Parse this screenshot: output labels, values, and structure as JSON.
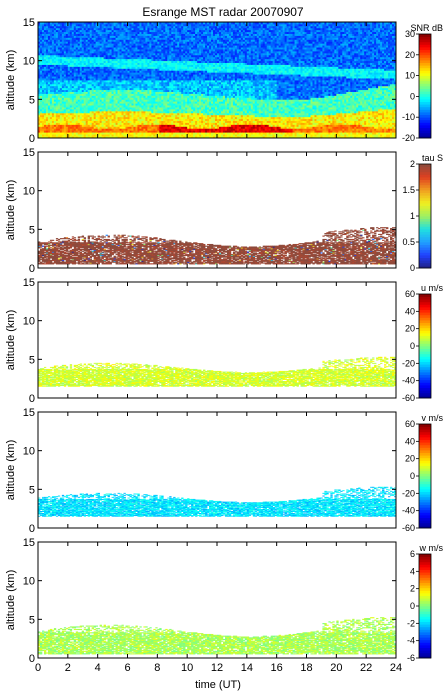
{
  "title": "Esrange MST radar 20070907",
  "x_axis": {
    "label": "time (UT)",
    "ticks": [
      "0",
      "2",
      "4",
      "6",
      "8",
      "10",
      "12",
      "14",
      "16",
      "18",
      "20",
      "22",
      "24"
    ]
  },
  "chart_data": [
    {
      "type": "heatmap",
      "title": "Esrange MST radar 20070907",
      "xlabel": "",
      "ylabel": "altitude (km)",
      "xlim": [
        0,
        24
      ],
      "ylim": [
        0,
        15
      ],
      "y_ticks": [
        "0",
        "5",
        "10",
        "15"
      ],
      "colorbar": {
        "label": "SNR dB",
        "range": [
          -20,
          30
        ],
        "ticks": [
          "30",
          "20",
          "10",
          "0",
          "-10",
          "-20"
        ]
      },
      "description_layers": [
        {
          "alt": [
            0,
            1.2
          ],
          "value": 15
        },
        {
          "alt": [
            1.2,
            3.0
          ],
          "value": 8
        },
        {
          "alt": [
            3.0,
            5.5
          ],
          "value": 0
        },
        {
          "alt": [
            5.5,
            15
          ],
          "value": -10
        }
      ]
    },
    {
      "type": "heatmap",
      "xlabel": "",
      "ylabel": "altitude (km)",
      "xlim": [
        0,
        24
      ],
      "ylim": [
        0,
        15
      ],
      "y_ticks": [
        "0",
        "5",
        "10",
        "15"
      ],
      "colorbar": {
        "label": "tau S",
        "range": [
          0,
          2
        ],
        "ticks": [
          "2",
          "1.5",
          "1",
          "0.5",
          "0"
        ]
      },
      "dominant_value": 2,
      "data_altitude_range": [
        0.5,
        5.5
      ]
    },
    {
      "type": "heatmap",
      "xlabel": "",
      "ylabel": "altitude (km)",
      "xlim": [
        0,
        24
      ],
      "ylim": [
        0,
        15
      ],
      "y_ticks": [
        "0",
        "5",
        "10",
        "15"
      ],
      "colorbar": {
        "label": "u m/s",
        "range": [
          -60,
          60
        ],
        "ticks": [
          "60",
          "40",
          "20",
          "0",
          "-20",
          "-40",
          "-60"
        ]
      },
      "dominant_value": 10,
      "data_altitude_range": [
        1.5,
        5.5
      ]
    },
    {
      "type": "heatmap",
      "xlabel": "",
      "ylabel": "altitude (km)",
      "xlim": [
        0,
        24
      ],
      "ylim": [
        0,
        15
      ],
      "y_ticks": [
        "0",
        "5",
        "10",
        "15"
      ],
      "colorbar": {
        "label": "v m/s",
        "range": [
          -60,
          60
        ],
        "ticks": [
          "60",
          "40",
          "20",
          "0",
          "-20",
          "-40",
          "-60"
        ]
      },
      "dominant_value": -18,
      "data_altitude_range": [
        1.5,
        5.5
      ]
    },
    {
      "type": "heatmap",
      "xlabel": "time (UT)",
      "ylabel": "altitude (km)",
      "xlim": [
        0,
        24
      ],
      "ylim": [
        0,
        15
      ],
      "y_ticks": [
        "0",
        "5",
        "10",
        "15"
      ],
      "colorbar": {
        "label": "w m/s",
        "range": [
          -6,
          6
        ],
        "ticks": [
          "6",
          "4",
          "2",
          "0",
          "-2",
          "-4",
          "-6"
        ]
      },
      "dominant_value": 0.5,
      "data_altitude_range": [
        0.5,
        5.5
      ]
    }
  ],
  "colors": {
    "jet": [
      "#00008f",
      "#0000ff",
      "#0080ff",
      "#00ffff",
      "#80ff80",
      "#ffff00",
      "#ff8000",
      "#ff0000",
      "#800000"
    ],
    "tau": [
      "#202080",
      "#2040ff",
      "#20a0ff",
      "#20e0e0",
      "#a0f060",
      "#f0f020",
      "#f0a020",
      "#e04020",
      "#8b4a3c"
    ]
  }
}
